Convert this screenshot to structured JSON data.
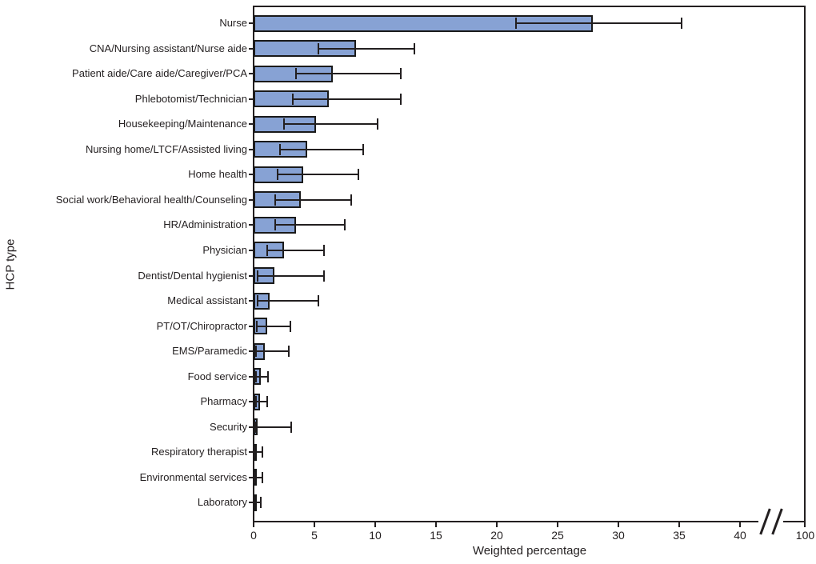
{
  "figure": {
    "xlabel": "Weighted percentage",
    "ylabel": "HCP type"
  },
  "chart_data": {
    "type": "bar",
    "orientation": "horizontal",
    "title": "",
    "xlabel": "Weighted percentage",
    "ylabel": "HCP type",
    "grid": false,
    "legend": false,
    "x_ticks": [
      0,
      5,
      10,
      15,
      20,
      25,
      30,
      35,
      40,
      100
    ],
    "x_axis_linear_limit": [
      0,
      40
    ],
    "axis_break_between": [
      40,
      100
    ],
    "error_bars": true,
    "categories": [
      "Nurse",
      "CNA/Nursing assistant/Nurse aide",
      "Patient aide/Care aide/Caregiver/PCA",
      "Phlebotomist/Technician",
      "Housekeeping/Maintenance",
      "Nursing home/LTCF/Assisted living",
      "Home health",
      "Social work/Behavioral health/Counseling",
      "HR/Administration",
      "Physician",
      "Dentist/Dental hygienist",
      "Medical assistant",
      "PT/OT/Chiropractor",
      "EMS/Paramedic",
      "Food service",
      "Pharmacy",
      "Security",
      "Respiratory therapist",
      "Environmental services",
      "Laboratory"
    ],
    "series": [
      {
        "name": "Weighted percentage",
        "values": [
          27.9,
          8.4,
          6.5,
          6.2,
          5.1,
          4.4,
          4.1,
          3.9,
          3.5,
          2.5,
          1.7,
          1.3,
          1.1,
          0.9,
          0.6,
          0.5,
          0.35,
          0.15,
          0.15,
          0.05
        ],
        "ci_low": [
          21.6,
          5.3,
          3.5,
          3.2,
          2.5,
          2.2,
          2.0,
          1.8,
          1.8,
          1.1,
          0.3,
          0.3,
          0.25,
          0.2,
          0.2,
          0.2,
          0.1,
          0.05,
          0.05,
          0.0
        ],
        "ci_high": [
          35.2,
          13.2,
          12.1,
          12.1,
          10.2,
          9.0,
          8.6,
          8.0,
          7.5,
          5.8,
          5.8,
          5.3,
          3.0,
          2.9,
          1.2,
          1.1,
          3.1,
          0.7,
          0.7,
          0.6
        ]
      }
    ],
    "colors": {
      "bar_fill": "#87a2d4",
      "bar_border": "#1a1a1a",
      "axis": "#231f20"
    }
  }
}
